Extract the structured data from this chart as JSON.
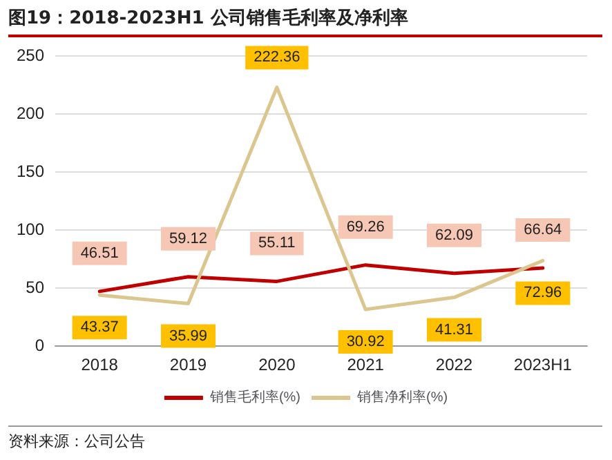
{
  "chart_data": {
    "type": "line",
    "title": "图19：2018-2023H1 公司销售毛利率及净利率",
    "categories": [
      "2018",
      "2019",
      "2020",
      "2021",
      "2022",
      "2023H1"
    ],
    "series": [
      {
        "name": "销售毛利率(%)",
        "color": "#c00000",
        "values": [
          46.51,
          59.12,
          55.11,
          69.26,
          62.09,
          66.64
        ]
      },
      {
        "name": "销售净利率(%)",
        "color": "#dcc68f",
        "values": [
          43.37,
          35.99,
          222.36,
          30.92,
          41.31,
          72.96
        ]
      }
    ],
    "ylim": [
      0,
      250
    ],
    "yticks": [
      0,
      50,
      100,
      150,
      200,
      250
    ],
    "grid": "y",
    "legend": "bottom",
    "marker": "none",
    "line_style": "solid",
    "data_labels": true,
    "annotations": [
      "资料来源：公司公告"
    ]
  }
}
